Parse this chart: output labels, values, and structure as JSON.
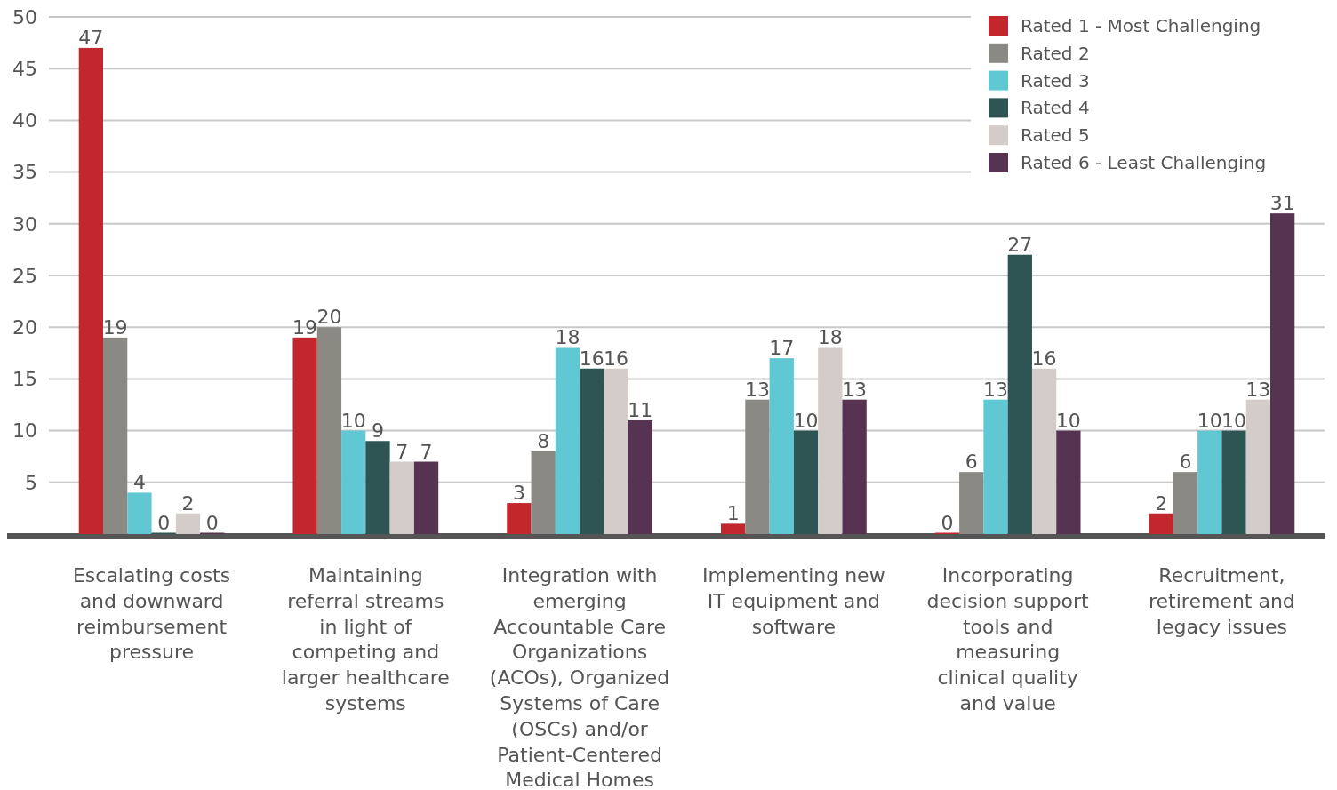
{
  "chart_data": {
    "type": "bar",
    "categories": [
      "Escalating costs and downward reimbursement pressure",
      "Maintaining referral streams in light of competing and larger healthcare systems",
      "Integration with emerging Accountable Care Organizations (ACOs), Organized Systems of Care (OSCs) and/or Patient-Centered Medical Homes",
      "Implementing new IT equipment and software",
      "Incorporating decision support tools and measuring clinical quality and value",
      "Recruitment, retirement and legacy issues"
    ],
    "series": [
      {
        "name": "Rated 1 - Most Challenging",
        "color": "#c1272d",
        "values": [
          47,
          19,
          3,
          1,
          0,
          2
        ]
      },
      {
        "name": "Rated 2",
        "color": "#8a8984",
        "values": [
          19,
          20,
          8,
          13,
          6,
          6
        ]
      },
      {
        "name": "Rated 3",
        "color": "#5fc8d2",
        "values": [
          4,
          10,
          18,
          17,
          13,
          10
        ]
      },
      {
        "name": "Rated 4",
        "color": "#2e5454",
        "values": [
          0,
          9,
          16,
          10,
          27,
          10
        ]
      },
      {
        "name": "Rated 5",
        "color": "#d4ccc8",
        "values": [
          2,
          7,
          16,
          18,
          16,
          13
        ]
      },
      {
        "name": "Rated 6 - Least Challenging",
        "color": "#563350",
        "values": [
          0,
          7,
          11,
          13,
          10,
          31
        ]
      }
    ],
    "ylim": [
      0,
      50
    ],
    "yticks": [
      5,
      10,
      15,
      20,
      25,
      30,
      35,
      40,
      45,
      50
    ],
    "grid": "y",
    "legend": "top right",
    "data_labels": true
  }
}
